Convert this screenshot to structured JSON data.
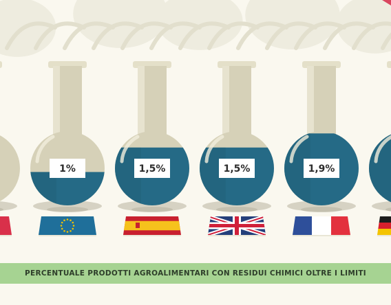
{
  "caption": "PERCENTUALE PRODOTTI AGROALIMENTARI CON RESIDUI CHIMICI OLTRE I LIMITI",
  "colors": {
    "background": "#faf8ef",
    "glass": "#d6d1b8",
    "liquid": "#256a86",
    "caption_bar": "#a6d392"
  },
  "flasks": [
    {
      "label": "",
      "fill": 0.0,
      "flag": "flag-red-partial"
    },
    {
      "label": "1%",
      "fill": 0.45,
      "flag": "flag-eu"
    },
    {
      "label": "1,5%",
      "fill": 0.78,
      "flag": "flag-spain"
    },
    {
      "label": "1,5%",
      "fill": 0.78,
      "flag": "flag-uk"
    },
    {
      "label": "1,9%",
      "fill": 0.97,
      "flag": "flag-france"
    },
    {
      "label": "",
      "fill": 0.97,
      "flag": "flag-germany"
    }
  ]
}
